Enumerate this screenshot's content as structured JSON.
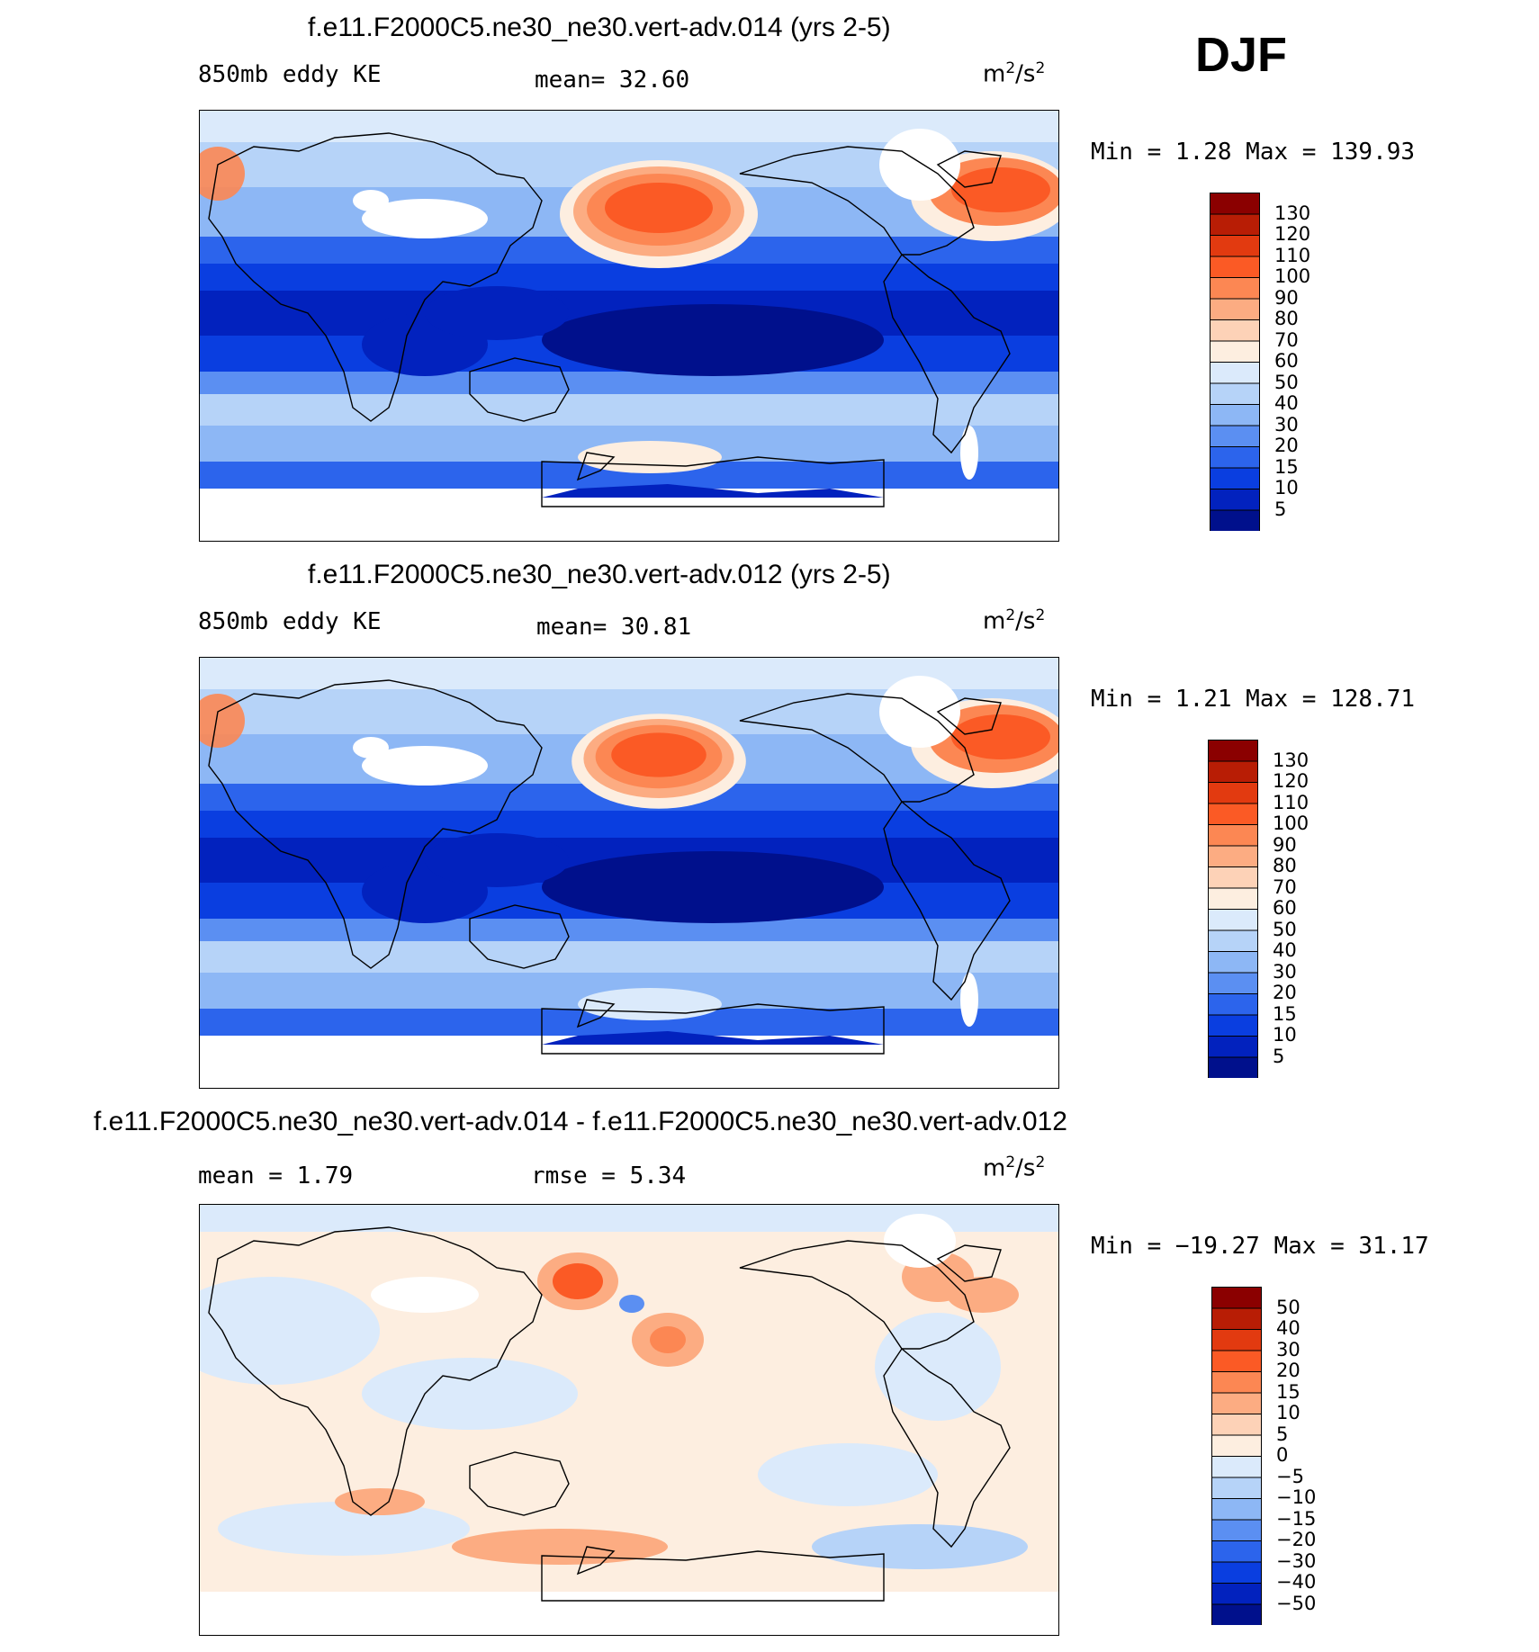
{
  "season": "DJF",
  "panels": [
    {
      "title": "f.e11.F2000C5.ne30_ne30.vert-adv.014 (yrs 2-5)",
      "left_label": "850mb  eddy  KE",
      "mid_label": "mean=   32.60",
      "unit_base": "m",
      "unit_sup1": "2",
      "unit_mid": "/s",
      "unit_sup2": "2",
      "minmax": "Min  =    1.28  Max  =  139.93",
      "colorbar": {
        "colors": [
          "#8b0000",
          "#b81d05",
          "#e23a10",
          "#fb5a25",
          "#fc8753",
          "#fcac82",
          "#fdd2b7",
          "#fdeee0",
          "#dbeafb",
          "#b6d3f8",
          "#8db7f5",
          "#5b8ff2",
          "#2c64ec",
          "#0a3ee0",
          "#0222be",
          "#00108c"
        ],
        "labels": [
          "130",
          "120",
          "110",
          "100",
          "90",
          "80",
          "70",
          "60",
          "50",
          "40",
          "30",
          "20",
          "15",
          "10",
          "5"
        ]
      },
      "map": {
        "style": "ke",
        "variant": 1
      }
    },
    {
      "title": "f.e11.F2000C5.ne30_ne30.vert-adv.012 (yrs 2-5)",
      "left_label": "850mb  eddy  KE",
      "mid_label": "mean=   30.81",
      "unit_base": "m",
      "unit_sup1": "2",
      "unit_mid": "/s",
      "unit_sup2": "2",
      "minmax": "Min  =    1.21  Max  =  128.71",
      "colorbar": {
        "colors": [
          "#8b0000",
          "#b81d05",
          "#e23a10",
          "#fb5a25",
          "#fc8753",
          "#fcac82",
          "#fdd2b7",
          "#fdeee0",
          "#dbeafb",
          "#b6d3f8",
          "#8db7f5",
          "#5b8ff2",
          "#2c64ec",
          "#0a3ee0",
          "#0222be",
          "#00108c"
        ],
        "labels": [
          "130",
          "120",
          "110",
          "100",
          "90",
          "80",
          "70",
          "60",
          "50",
          "40",
          "30",
          "20",
          "15",
          "10",
          "5"
        ]
      },
      "map": {
        "style": "ke",
        "variant": 2
      }
    },
    {
      "title": "f.e11.F2000C5.ne30_ne30.vert-adv.014 - f.e11.F2000C5.ne30_ne30.vert-adv.012",
      "left_label": "mean  =     1.79",
      "mid_label": "rmse  =     5.34",
      "unit_base": "m",
      "unit_sup1": "2",
      "unit_mid": "/s",
      "unit_sup2": "2",
      "minmax": "Min  =  −19.27  Max  =    31.17",
      "colorbar": {
        "colors": [
          "#8b0000",
          "#b81d05",
          "#e23a10",
          "#fb5a25",
          "#fc8753",
          "#fcac82",
          "#fdd2b7",
          "#fdeee0",
          "#dbeafb",
          "#b6d3f8",
          "#8db7f5",
          "#5b8ff2",
          "#2c64ec",
          "#0a3ee0",
          "#0222be",
          "#00108c"
        ],
        "labels": [
          "50",
          "40",
          "30",
          "20",
          "15",
          "10",
          "5",
          "0",
          "−5",
          "−10",
          "−15",
          "−20",
          "−30",
          "−40",
          "−50"
        ]
      },
      "map": {
        "style": "diff",
        "variant": 3
      }
    }
  ]
}
